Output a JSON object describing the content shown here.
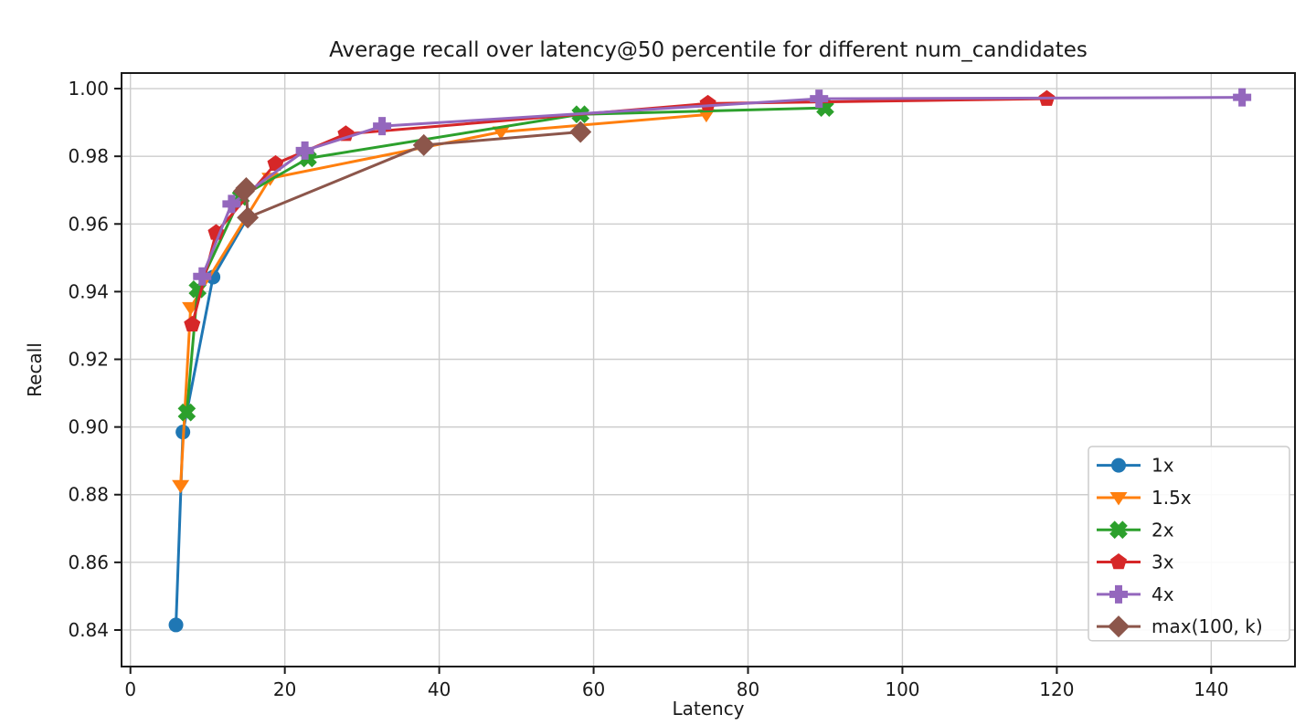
{
  "chart_data": {
    "type": "line",
    "title": "Average recall over latency@50 percentile for different num_candidates",
    "xlabel": "Latency",
    "ylabel": "Recall",
    "xlim": [
      -1.15,
      150.85
    ],
    "ylim": [
      0.8292,
      1.0046
    ],
    "xticks": [
      0,
      20,
      40,
      60,
      80,
      100,
      120,
      140
    ],
    "xtick_labels": [
      "0",
      "20",
      "40",
      "60",
      "80",
      "100",
      "120",
      "140"
    ],
    "yticks": [
      0.84,
      0.86,
      0.88,
      0.9,
      0.92,
      0.94,
      0.96,
      0.98,
      1.0
    ],
    "ytick_labels": [
      "0.84",
      "0.86",
      "0.88",
      "0.90",
      "0.92",
      "0.94",
      "0.96",
      "0.98",
      "1.00"
    ],
    "grid": true,
    "grid_color": "#cdcdcd",
    "spine_color": "#1a1a1a",
    "background_color": "#ffffff",
    "legend_position": "lower right",
    "series": [
      {
        "name": "1x",
        "color": "#1f77b4",
        "marker": "circle",
        "points": [
          [
            5.9,
            0.8415
          ],
          [
            6.8,
            0.8985
          ],
          [
            10.7,
            0.9443
          ],
          [
            15.2,
            0.962
          ]
        ]
      },
      {
        "name": "1.5x",
        "color": "#ff7f0e",
        "marker": "triangle_down",
        "points": [
          [
            6.5,
            0.8827
          ],
          [
            7.8,
            0.9353
          ],
          [
            18.1,
            0.9735
          ],
          [
            48.0,
            0.9872
          ],
          [
            74.6,
            0.9923
          ]
        ]
      },
      {
        "name": "2x",
        "color": "#2ca02c",
        "marker": "x",
        "points": [
          [
            7.3,
            0.9043
          ],
          [
            8.7,
            0.9407
          ],
          [
            14.3,
            0.968
          ],
          [
            23.0,
            0.9794
          ],
          [
            58.3,
            0.9924
          ],
          [
            90.0,
            0.9943
          ]
        ]
      },
      {
        "name": "3x",
        "color": "#d62728",
        "marker": "pentagon",
        "points": [
          [
            8.0,
            0.9303
          ],
          [
            11.1,
            0.9574
          ],
          [
            18.8,
            0.9778
          ],
          [
            27.9,
            0.9866
          ],
          [
            74.8,
            0.9956
          ],
          [
            118.7,
            0.997
          ]
        ]
      },
      {
        "name": "4x",
        "color": "#9467bd",
        "marker": "plus",
        "points": [
          [
            9.3,
            0.9445
          ],
          [
            13.1,
            0.9659
          ],
          [
            22.6,
            0.9817
          ],
          [
            32.6,
            0.9889
          ],
          [
            89.2,
            0.997
          ],
          [
            144.0,
            0.9974
          ]
        ]
      },
      {
        "name": "max(100, k)",
        "color": "#8c564b",
        "marker": "diamond",
        "points": [
          [
            14.7,
            0.9697
          ],
          [
            15.0,
            0.9706
          ],
          [
            15.2,
            0.9619
          ],
          [
            38.0,
            0.9833
          ],
          [
            58.3,
            0.9872
          ]
        ]
      }
    ]
  }
}
